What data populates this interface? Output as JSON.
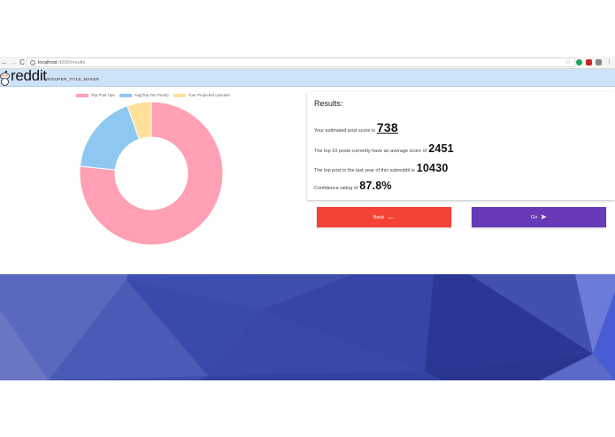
{
  "browser": {
    "url_host": "localhost",
    "url_path": ":4200/results",
    "back_icon": "←",
    "forward_icon": "→",
    "reload_icon": "C",
    "star_icon": "☆",
    "menu_icon": "⋮"
  },
  "header": {
    "logo_text": "reddit",
    "subreddit": "/R/SUPER_TITLE_MAKER",
    "background": "#cfe3f8"
  },
  "chart": {
    "legend": [
      {
        "label": "Top Post Ups",
        "color": "#ffa0b4"
      },
      {
        "label": "Avg(Top Ten Posts)",
        "color": "#8ec8f0"
      },
      {
        "label": "Your Projected Upvotes",
        "color": "#ffe09a"
      }
    ]
  },
  "chart_data": {
    "type": "pie",
    "subtype": "doughnut",
    "title": "",
    "categories": [
      "Top Post Ups",
      "Avg(Top Ten Posts)",
      "Your Projected Upvotes"
    ],
    "values": [
      10430,
      2451,
      738
    ],
    "colors": [
      "#ffa0b4",
      "#8ec8f0",
      "#ffe09a"
    ],
    "legend_position": "top"
  },
  "results": {
    "title": "Results:",
    "estimated_label": "Your estimated post score is",
    "estimated_value": "738",
    "average_label": "The top 10 posts currently have an average score of",
    "average_value": "2451",
    "top_label": "The top post in the last year of this subreddit is",
    "top_value": "10430",
    "confidence_label": "Confidence rating of",
    "confidence_value": "87.8%"
  },
  "buttons": {
    "back_label": "Back",
    "back_icon": "←",
    "go_label": "Go",
    "go_icon": "➤",
    "back_color": "#f44336",
    "go_color": "#673ab7"
  }
}
